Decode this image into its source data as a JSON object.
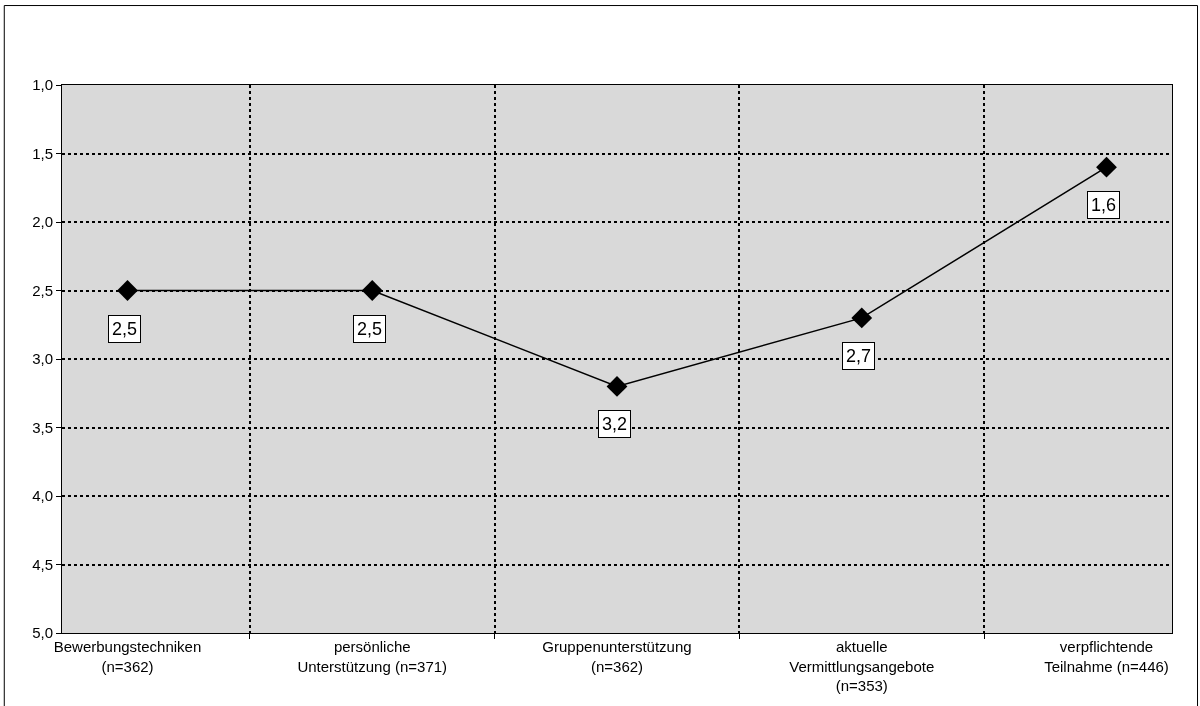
{
  "chart_data": {
    "type": "line",
    "categories": [
      "Bewerbungstechniken\n(n=362)",
      "persönliche\nUnterstützung (n=371)",
      "Gruppenunterstützung\n(n=362)",
      "aktuelle\nVermittlungsangebote\n(n=353)",
      "verpflichtende\nTeilnahme (n=446)"
    ],
    "series": [
      {
        "color": "#000000",
        "values": [
          2.5,
          2.5,
          3.2,
          2.7,
          1.6
        ],
        "value_labels": [
          "2,5",
          "2,5",
          "3,2",
          "2,7",
          "1,6"
        ]
      }
    ],
    "ylim": [
      5.0,
      1.0
    ],
    "yticks": [
      {
        "value": 1.0,
        "label": "1,0"
      },
      {
        "value": 1.5,
        "label": "1,5"
      },
      {
        "value": 2.0,
        "label": "2,0"
      },
      {
        "value": 2.5,
        "label": "2,5"
      },
      {
        "value": 3.0,
        "label": "3,0"
      },
      {
        "value": 3.5,
        "label": "3,5"
      },
      {
        "value": 4.0,
        "label": "4,0"
      },
      {
        "value": 4.5,
        "label": "4,5"
      },
      {
        "value": 5.0,
        "label": "5,0"
      }
    ],
    "grid": true,
    "marker": "diamond",
    "line_style": "solid"
  }
}
